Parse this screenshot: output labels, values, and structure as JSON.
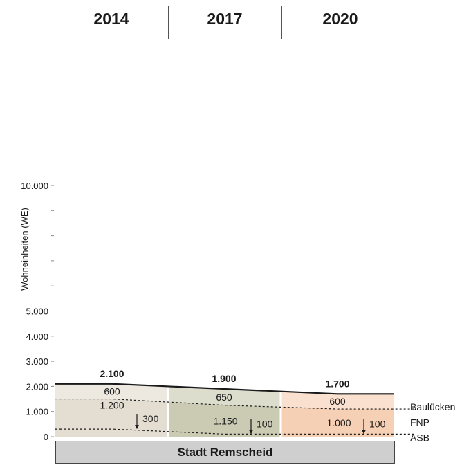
{
  "years": [
    "2014",
    "2017",
    "2020"
  ],
  "footer_label": "Stadt Remscheid",
  "chart_data": {
    "type": "area",
    "ylabel": "Wohneinheiten (WE)",
    "ylim": [
      0,
      10000
    ],
    "yticks": [
      {
        "value": 0,
        "label": "0"
      },
      {
        "value": 1000,
        "label": "1.000"
      },
      {
        "value": 2000,
        "label": "2.000"
      },
      {
        "value": 3000,
        "label": "3.000"
      },
      {
        "value": 4000,
        "label": "4.000"
      },
      {
        "value": 5000,
        "label": "5.000"
      },
      {
        "value": 6000,
        "label": ""
      },
      {
        "value": 7000,
        "label": ""
      },
      {
        "value": 8000,
        "label": ""
      },
      {
        "value": 9000,
        "label": ""
      },
      {
        "value": 10000,
        "label": "10.000"
      }
    ],
    "categories": [
      "2014",
      "2017",
      "2020"
    ],
    "totals": [
      2100,
      1900,
      1700
    ],
    "total_labels": [
      "2.100",
      "1.900",
      "1.700"
    ],
    "series": [
      {
        "name": "ASB",
        "values": [
          300,
          100,
          100
        ],
        "labels": [
          "300",
          "100",
          "100"
        ]
      },
      {
        "name": "FNP",
        "values": [
          1200,
          1150,
          1000
        ],
        "labels": [
          "1.200",
          "1.150",
          "1.000"
        ]
      },
      {
        "name": "Baulücken",
        "values": [
          600,
          650,
          600
        ],
        "labels": [
          "600",
          "650",
          "600"
        ]
      }
    ],
    "colors": {
      "panel": [
        "#d9d3c2",
        "#b9b99a",
        "#f3c09c"
      ],
      "total_line": "#1a1a1a"
    }
  }
}
